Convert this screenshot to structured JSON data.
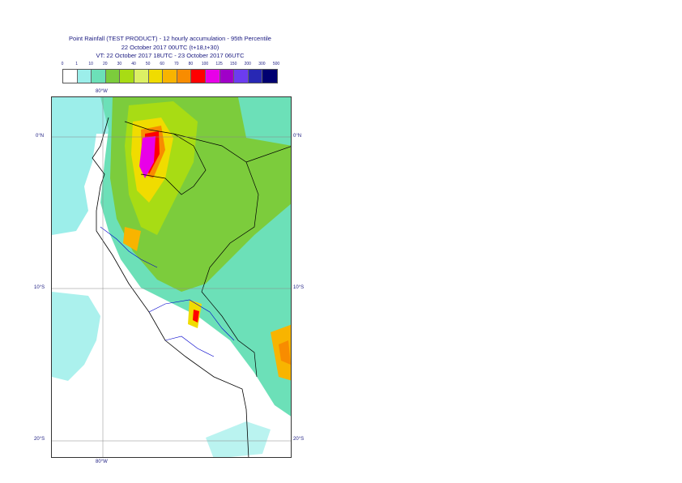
{
  "header": {
    "line1": "Point Rainfall (TEST PRODUCT) - 12 hourly accumulation - 95th Percentile",
    "line2": "22 October 2017 00UTC (t+18,t+30)",
    "line3": "VT: 22 October 2017 18UTC - 23 October 2017 06UTC"
  },
  "legend": {
    "ticks": [
      "0",
      "1",
      "10",
      "20",
      "30",
      "40",
      "50",
      "60",
      "70",
      "80",
      "100",
      "125",
      "150",
      "200",
      "300",
      "500"
    ],
    "colors": [
      "#ffffff",
      "#9ceeea",
      "#6ce0b8",
      "#7ccc3c",
      "#a8dc14",
      "#dcf064",
      "#f0dc00",
      "#f8b400",
      "#f88c00",
      "#ff0000",
      "#e800e8",
      "#a000c8",
      "#6c3cf0",
      "#2828b4",
      "#000070"
    ]
  },
  "map": {
    "lat_labels": [
      "0°N",
      "10°S",
      "20°S"
    ],
    "lon_labels": [
      "80°W",
      "80°W"
    ]
  }
}
